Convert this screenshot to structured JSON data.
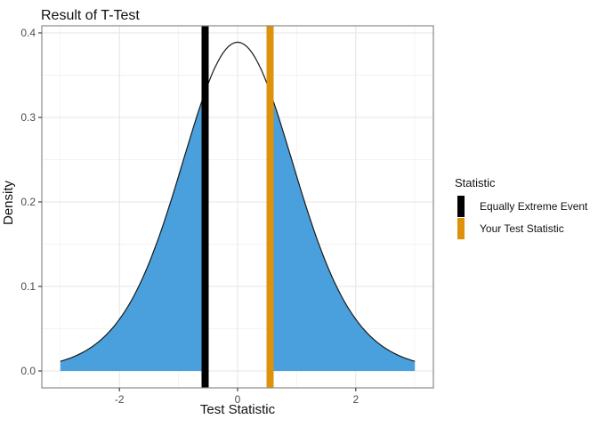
{
  "chart_data": {
    "type": "area",
    "title": "Result of T-Test",
    "xlabel": "Test Statistic",
    "ylabel": "Density",
    "x_axis": {
      "range": [
        -3.31,
        3.31
      ],
      "ticks": [
        {
          "value": -2,
          "label": "-2"
        },
        {
          "value": 0,
          "label": "0"
        },
        {
          "value": 2,
          "label": "2"
        }
      ],
      "minor": [
        -3,
        -1,
        1,
        3
      ]
    },
    "y_axis": {
      "range": [
        -0.02,
        0.408
      ],
      "ticks": [
        {
          "value": 0.0,
          "label": "0.0"
        },
        {
          "value": 0.1,
          "label": "0.1"
        },
        {
          "value": 0.2,
          "label": "0.2"
        },
        {
          "value": 0.3,
          "label": "0.3"
        },
        {
          "value": 0.4,
          "label": "0.4"
        }
      ],
      "minor": [
        0.05,
        0.15,
        0.25,
        0.35
      ]
    },
    "curve": {
      "description": "t-distribution density",
      "df": 10,
      "peak_density": 0.389,
      "x_min": -3,
      "x_max": 3
    },
    "shaded_fill": "#4AA0DC",
    "shaded_regions": [
      {
        "from": -3,
        "to": -0.55
      },
      {
        "from": 0.55,
        "to": 3
      }
    ],
    "vlines": [
      {
        "x": -0.55,
        "color": "#000000",
        "name": "Equally Extreme Event"
      },
      {
        "x": 0.55,
        "color": "#DE920C",
        "name": "Your Test Statistic"
      }
    ],
    "legend_position": "right"
  },
  "legend": {
    "title": "Statistic",
    "items": [
      {
        "label": "Equally Extreme Event",
        "color": "#000000"
      },
      {
        "label": "Your Test Statistic",
        "color": "#DE920C"
      }
    ]
  },
  "style": {
    "grid_major": "#E6E6E6",
    "grid_minor": "#F3F3F3",
    "panel_border": "#8A8A8A",
    "tick_color": "#333333",
    "tick_label_color": "#4D4D4D",
    "curve_color": "#1A1A1A"
  }
}
